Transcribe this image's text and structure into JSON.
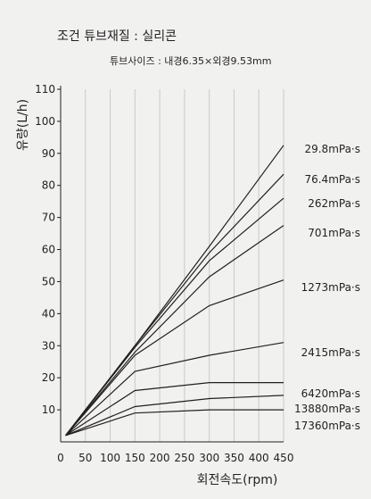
{
  "header": {
    "title": "조건   튜브재질 : 실리콘",
    "subtitle": "튜브사이즈 : 내경6.35×외경9.53mm"
  },
  "chart_data": {
    "type": "line",
    "xlabel": "회전속도(rpm)",
    "ylabel": "유량(L/h)",
    "xlim": [
      0,
      450
    ],
    "ylim": [
      0,
      110
    ],
    "xticks": [
      0,
      50,
      100,
      150,
      200,
      250,
      300,
      350,
      400,
      450
    ],
    "yticks": [
      10,
      20,
      30,
      40,
      50,
      60,
      70,
      80,
      90,
      100,
      110
    ],
    "grid": true,
    "x": [
      10,
      150,
      300,
      450
    ],
    "series": [
      {
        "name": "29.8mPa·s",
        "values": [
          2,
          30,
          61,
          92.5
        ]
      },
      {
        "name": "76.4mPa·s",
        "values": [
          2,
          30,
          59,
          83.5
        ]
      },
      {
        "name": "262mPa·s",
        "values": [
          2,
          29.5,
          56.5,
          76
        ]
      },
      {
        "name": "701mPa·s",
        "values": [
          2,
          28,
          51.5,
          67.5
        ]
      },
      {
        "name": "1273mPa·s",
        "values": [
          2,
          27,
          42.5,
          50.5
        ]
      },
      {
        "name": "2415mPa·s",
        "values": [
          2,
          22,
          27,
          31
        ]
      },
      {
        "name": "6420mPa·s",
        "values": [
          2,
          16,
          18.5,
          18.5
        ]
      },
      {
        "name": "13880mPa·s",
        "values": [
          2,
          11,
          13.5,
          14.5
        ]
      },
      {
        "name": "17360mPa·s",
        "values": [
          2,
          9,
          10,
          10
        ]
      }
    ]
  }
}
